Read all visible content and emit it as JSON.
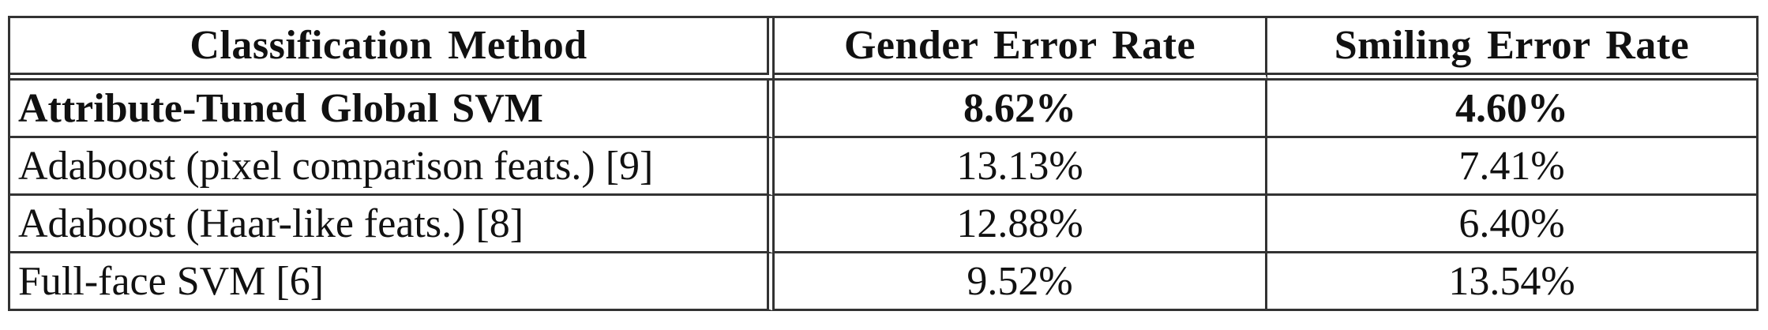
{
  "table": {
    "headers": {
      "method": "Classification Method",
      "gender": "Gender Error Rate",
      "smiling": "Smiling Error Rate"
    },
    "rows": [
      {
        "method": "Attribute-Tuned Global SVM",
        "gender": "8.62%",
        "smiling": "4.60%"
      },
      {
        "method": "Adaboost (pixel comparison feats.) [9]",
        "gender": "13.13%",
        "smiling": "7.41%"
      },
      {
        "method": "Adaboost (Haar-like feats.) [8]",
        "gender": "12.88%",
        "smiling": "6.40%"
      },
      {
        "method": "Full-face SVM [6]",
        "gender": "9.52%",
        "smiling": "13.54%"
      }
    ]
  }
}
